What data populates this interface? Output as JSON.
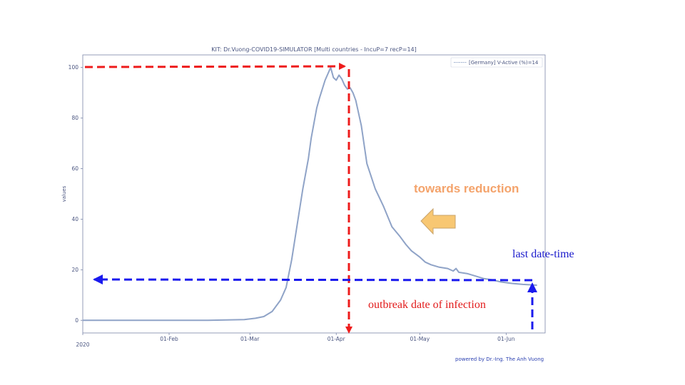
{
  "colors": {
    "series": "#8fa3c7",
    "axis": "#7a86a8",
    "red_arrow": "#ee1c1c",
    "blue_arrow": "#1a1aee",
    "orange_arrow_fill": "#f8c772",
    "orange_arrow_stroke": "#c9a36a"
  },
  "chart_data": {
    "type": "line",
    "title": "KIT: Dr.Vuong-COVID19-SIMULATOR [Multi countries - IncuP=7 recP=14]",
    "xlabel": "",
    "ylabel": "values",
    "xlim": [
      "2020-01-01",
      "2020-06-15"
    ],
    "ylim": [
      -5,
      105
    ],
    "grid": false,
    "legend_position": "top-right",
    "x_ticks": [
      {
        "date": "2020-01-01",
        "label": "2020"
      },
      {
        "date": "2020-02-01",
        "label": "01-Feb"
      },
      {
        "date": "2020-03-01",
        "label": "01-Mar"
      },
      {
        "date": "2020-04-01",
        "label": "01-Apr"
      },
      {
        "date": "2020-05-01",
        "label": "01-May"
      },
      {
        "date": "2020-06-01",
        "label": "01-Jun"
      }
    ],
    "y_ticks": [
      0,
      20,
      40,
      60,
      80,
      100
    ],
    "series": [
      {
        "name": "[Germany] V-Active (%)=14",
        "x": [
          "2020-01-01",
          "2020-02-15",
          "2020-02-28",
          "2020-03-03",
          "2020-03-06",
          "2020-03-09",
          "2020-03-12",
          "2020-03-14",
          "2020-03-16",
          "2020-03-18",
          "2020-03-20",
          "2020-03-22",
          "2020-03-23",
          "2020-03-24",
          "2020-03-25",
          "2020-03-26",
          "2020-03-28",
          "2020-03-29",
          "2020-03-30",
          "2020-03-31",
          "2020-04-01",
          "2020-04-02",
          "2020-04-03",
          "2020-04-04",
          "2020-04-05",
          "2020-04-06",
          "2020-04-07",
          "2020-04-08",
          "2020-04-10",
          "2020-04-12",
          "2020-04-15",
          "2020-04-18",
          "2020-04-21",
          "2020-04-24",
          "2020-04-26",
          "2020-04-28",
          "2020-05-01",
          "2020-05-03",
          "2020-05-05",
          "2020-05-08",
          "2020-05-11",
          "2020-05-13",
          "2020-05-14",
          "2020-05-15",
          "2020-05-18",
          "2020-05-21",
          "2020-05-24",
          "2020-05-27",
          "2020-05-30",
          "2020-06-03",
          "2020-06-07",
          "2020-06-12"
        ],
        "values": [
          0,
          0,
          0.3,
          0.8,
          1.5,
          3.5,
          8,
          13,
          24,
          38,
          52,
          64,
          72,
          78,
          84,
          88,
          95,
          97.5,
          100,
          96,
          95,
          97,
          95.5,
          93,
          91.5,
          92,
          90,
          87,
          77,
          62,
          52,
          45,
          37,
          33,
          30,
          27.5,
          25,
          23,
          22,
          21,
          20.5,
          19.5,
          20.5,
          19,
          18.5,
          17.5,
          16.5,
          16,
          15.2,
          14.6,
          14.2,
          13.9
        ]
      }
    ]
  },
  "annotations": {
    "towards_reduction": "towards reduction",
    "last_date_time": "last date-time",
    "outbreak_date": "outbreak date of infection"
  },
  "credit": "powered by Dr.-Ing. The Anh Vuong"
}
